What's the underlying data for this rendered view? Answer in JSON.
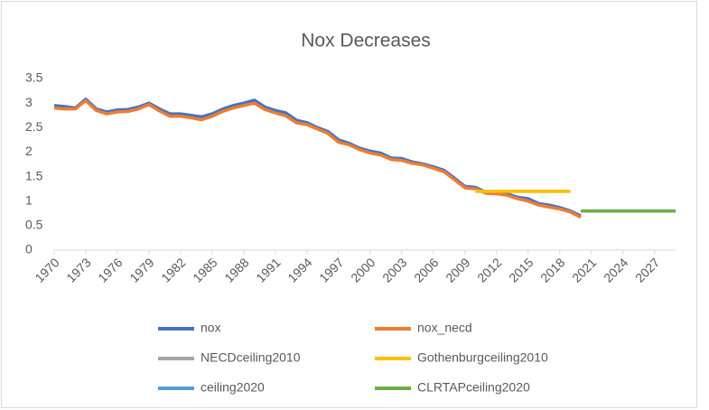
{
  "chart_data": {
    "type": "line",
    "title": "Nox Decreases",
    "x": [
      1970,
      1971,
      1972,
      1973,
      1974,
      1975,
      1976,
      1977,
      1978,
      1979,
      1980,
      1981,
      1982,
      1983,
      1984,
      1985,
      1986,
      1987,
      1988,
      1989,
      1990,
      1991,
      1992,
      1993,
      1994,
      1995,
      1996,
      1997,
      1998,
      1999,
      2000,
      2001,
      2002,
      2003,
      2004,
      2005,
      2006,
      2007,
      2008,
      2009,
      2010,
      2011,
      2012,
      2013,
      2014,
      2015,
      2016,
      2017,
      2018,
      2019,
      2020,
      2021,
      2022,
      2023,
      2024,
      2025,
      2026,
      2027,
      2028,
      2029
    ],
    "xlim": [
      1970,
      2029
    ],
    "xticks": [
      1970,
      1973,
      1976,
      1979,
      1982,
      1985,
      1988,
      1991,
      1994,
      1997,
      2000,
      2003,
      2006,
      2009,
      2012,
      2015,
      2018,
      2021,
      2024,
      2027
    ],
    "ylim": [
      0,
      3.5
    ],
    "yticks": [
      0,
      0.5,
      1,
      1.5,
      2,
      2.5,
      3,
      3.5
    ],
    "grid": false,
    "legend": "bottom",
    "series": [
      {
        "name": "nox",
        "color": "#4472c4",
        "values": [
          2.95,
          2.93,
          2.9,
          3.08,
          2.88,
          2.82,
          2.86,
          2.87,
          2.92,
          3.0,
          2.88,
          2.78,
          2.78,
          2.75,
          2.72,
          2.78,
          2.88,
          2.95,
          3.0,
          3.06,
          2.92,
          2.85,
          2.8,
          2.65,
          2.6,
          2.5,
          2.42,
          2.25,
          2.18,
          2.08,
          2.02,
          1.98,
          1.88,
          1.87,
          1.8,
          1.76,
          1.7,
          1.63,
          1.47,
          1.3,
          1.28,
          1.18,
          1.18,
          1.15,
          1.08,
          1.05,
          0.95,
          0.92,
          0.87,
          0.8,
          0.7,
          null,
          null,
          null,
          null,
          null,
          null,
          null,
          null,
          null
        ]
      },
      {
        "name": "nox_necd",
        "color": "#ed7d31",
        "values": [
          2.9,
          2.88,
          2.88,
          3.05,
          2.85,
          2.78,
          2.82,
          2.83,
          2.88,
          2.97,
          2.84,
          2.73,
          2.73,
          2.7,
          2.66,
          2.73,
          2.83,
          2.9,
          2.95,
          3.0,
          2.87,
          2.8,
          2.74,
          2.6,
          2.56,
          2.47,
          2.38,
          2.2,
          2.15,
          2.05,
          1.98,
          1.94,
          1.85,
          1.83,
          1.77,
          1.74,
          1.67,
          1.6,
          1.44,
          1.27,
          1.25,
          1.16,
          1.15,
          1.12,
          1.05,
          1.0,
          0.92,
          0.88,
          0.84,
          0.78,
          0.67,
          null,
          null,
          null,
          null,
          null,
          null,
          null,
          null,
          null
        ]
      },
      {
        "name": "NECDceiling2010",
        "color": "#a5a5a5",
        "values": [
          null,
          null,
          null,
          null,
          null,
          null,
          null,
          null,
          null,
          null,
          null,
          null,
          null,
          null,
          null,
          null,
          null,
          null,
          null,
          null,
          null,
          null,
          null,
          null,
          null,
          null,
          null,
          null,
          null,
          null,
          null,
          null,
          null,
          null,
          null,
          null,
          null,
          null,
          null,
          null,
          1.2,
          1.2,
          1.2,
          1.2,
          1.2,
          1.2,
          1.2,
          1.2,
          1.2,
          1.2,
          null,
          null,
          null,
          null,
          null,
          null,
          null,
          null,
          null,
          null
        ]
      },
      {
        "name": "Gothenburgceiling2010",
        "color": "#ffc000",
        "values": [
          null,
          null,
          null,
          null,
          null,
          null,
          null,
          null,
          null,
          null,
          null,
          null,
          null,
          null,
          null,
          null,
          null,
          null,
          null,
          null,
          null,
          null,
          null,
          null,
          null,
          null,
          null,
          null,
          null,
          null,
          null,
          null,
          null,
          null,
          null,
          null,
          null,
          null,
          null,
          null,
          1.2,
          1.2,
          1.2,
          1.2,
          1.2,
          1.2,
          1.2,
          1.2,
          1.2,
          1.2,
          null,
          null,
          null,
          null,
          null,
          null,
          null,
          null,
          null,
          null
        ]
      },
      {
        "name": "ceiling2020",
        "color": "#5b9bd5",
        "values": [
          null,
          null,
          null,
          null,
          null,
          null,
          null,
          null,
          null,
          null,
          null,
          null,
          null,
          null,
          null,
          null,
          null,
          null,
          null,
          null,
          null,
          null,
          null,
          null,
          null,
          null,
          null,
          null,
          null,
          null,
          null,
          null,
          null,
          null,
          null,
          null,
          null,
          null,
          null,
          null,
          null,
          null,
          null,
          null,
          null,
          null,
          null,
          null,
          null,
          null,
          0.8,
          0.8,
          0.8,
          0.8,
          0.8,
          0.8,
          0.8,
          0.8,
          0.8,
          0.8
        ]
      },
      {
        "name": "CLRTAPceiling2020",
        "color": "#70ad47",
        "values": [
          null,
          null,
          null,
          null,
          null,
          null,
          null,
          null,
          null,
          null,
          null,
          null,
          null,
          null,
          null,
          null,
          null,
          null,
          null,
          null,
          null,
          null,
          null,
          null,
          null,
          null,
          null,
          null,
          null,
          null,
          null,
          null,
          null,
          null,
          null,
          null,
          null,
          null,
          null,
          null,
          null,
          null,
          null,
          null,
          null,
          null,
          null,
          null,
          null,
          null,
          0.8,
          0.8,
          0.8,
          0.8,
          0.8,
          0.8,
          0.8,
          0.8,
          0.8,
          0.8
        ]
      }
    ]
  }
}
